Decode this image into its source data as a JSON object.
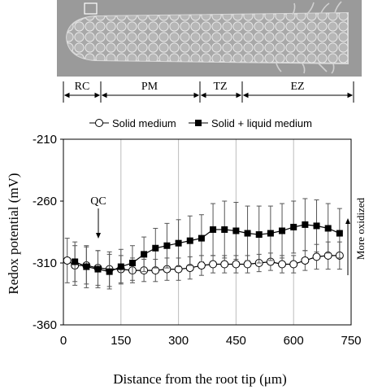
{
  "zones": [
    {
      "label": "RC"
    },
    {
      "label": "PM"
    },
    {
      "label": "TZ"
    },
    {
      "label": "EZ"
    }
  ],
  "annotations": {
    "qc": "QC",
    "oxidized": "More oxidized"
  },
  "colors": {
    "axis": "#000000",
    "grid": "#bdbdbd",
    "series": "#000000",
    "micrograph_bg": "#9a9a9a"
  },
  "chart_data": {
    "type": "line",
    "title": "",
    "xlabel": "Distance from the root tip (μm)",
    "ylabel": "Redox potential (mV)",
    "xlim": [
      0,
      750
    ],
    "ylim": [
      -360,
      -210
    ],
    "xticks": [
      0,
      150,
      300,
      450,
      600,
      750
    ],
    "yticks": [
      -210,
      -260,
      -310,
      -360
    ],
    "grid": "vertical",
    "legend": "top",
    "series": [
      {
        "name": "Solid medium",
        "marker": "open-circle",
        "x": [
          10,
          30,
          60,
          90,
          120,
          150,
          180,
          210,
          240,
          270,
          300,
          330,
          360,
          390,
          420,
          450,
          480,
          510,
          540,
          570,
          600,
          630,
          660,
          690,
          720
        ],
        "y": [
          -308,
          -312,
          -312,
          -314,
          -315,
          -315,
          -316,
          -316,
          -316,
          -315,
          -315,
          -314,
          -312,
          -311,
          -311,
          -311,
          -311,
          -310,
          -309,
          -311,
          -311,
          -308,
          -305,
          -304,
          -304
        ],
        "err": [
          18,
          16,
          15,
          14,
          14,
          11,
          10,
          9,
          9,
          9,
          9,
          9,
          8,
          7,
          7,
          7,
          7,
          7,
          7,
          7,
          7,
          8,
          10,
          11,
          11
        ]
      },
      {
        "name": "Solid + liquid medium",
        "marker": "filled-square",
        "x": [
          30,
          60,
          90,
          120,
          150,
          180,
          210,
          240,
          270,
          300,
          330,
          360,
          390,
          420,
          450,
          480,
          510,
          540,
          570,
          600,
          630,
          660,
          690,
          720
        ],
        "y": [
          -309,
          -313,
          -315,
          -317,
          -313,
          -310,
          -303,
          -298,
          -296,
          -294,
          -292,
          -290,
          -283,
          -283,
          -284,
          -286,
          -287,
          -286,
          -284,
          -281,
          -279,
          -280,
          -282,
          -286
        ],
        "err": [
          16,
          17,
          15,
          14,
          14,
          14,
          14,
          16,
          18,
          19,
          20,
          19,
          21,
          23,
          23,
          22,
          23,
          22,
          22,
          21,
          21,
          21,
          20,
          20
        ]
      }
    ]
  }
}
